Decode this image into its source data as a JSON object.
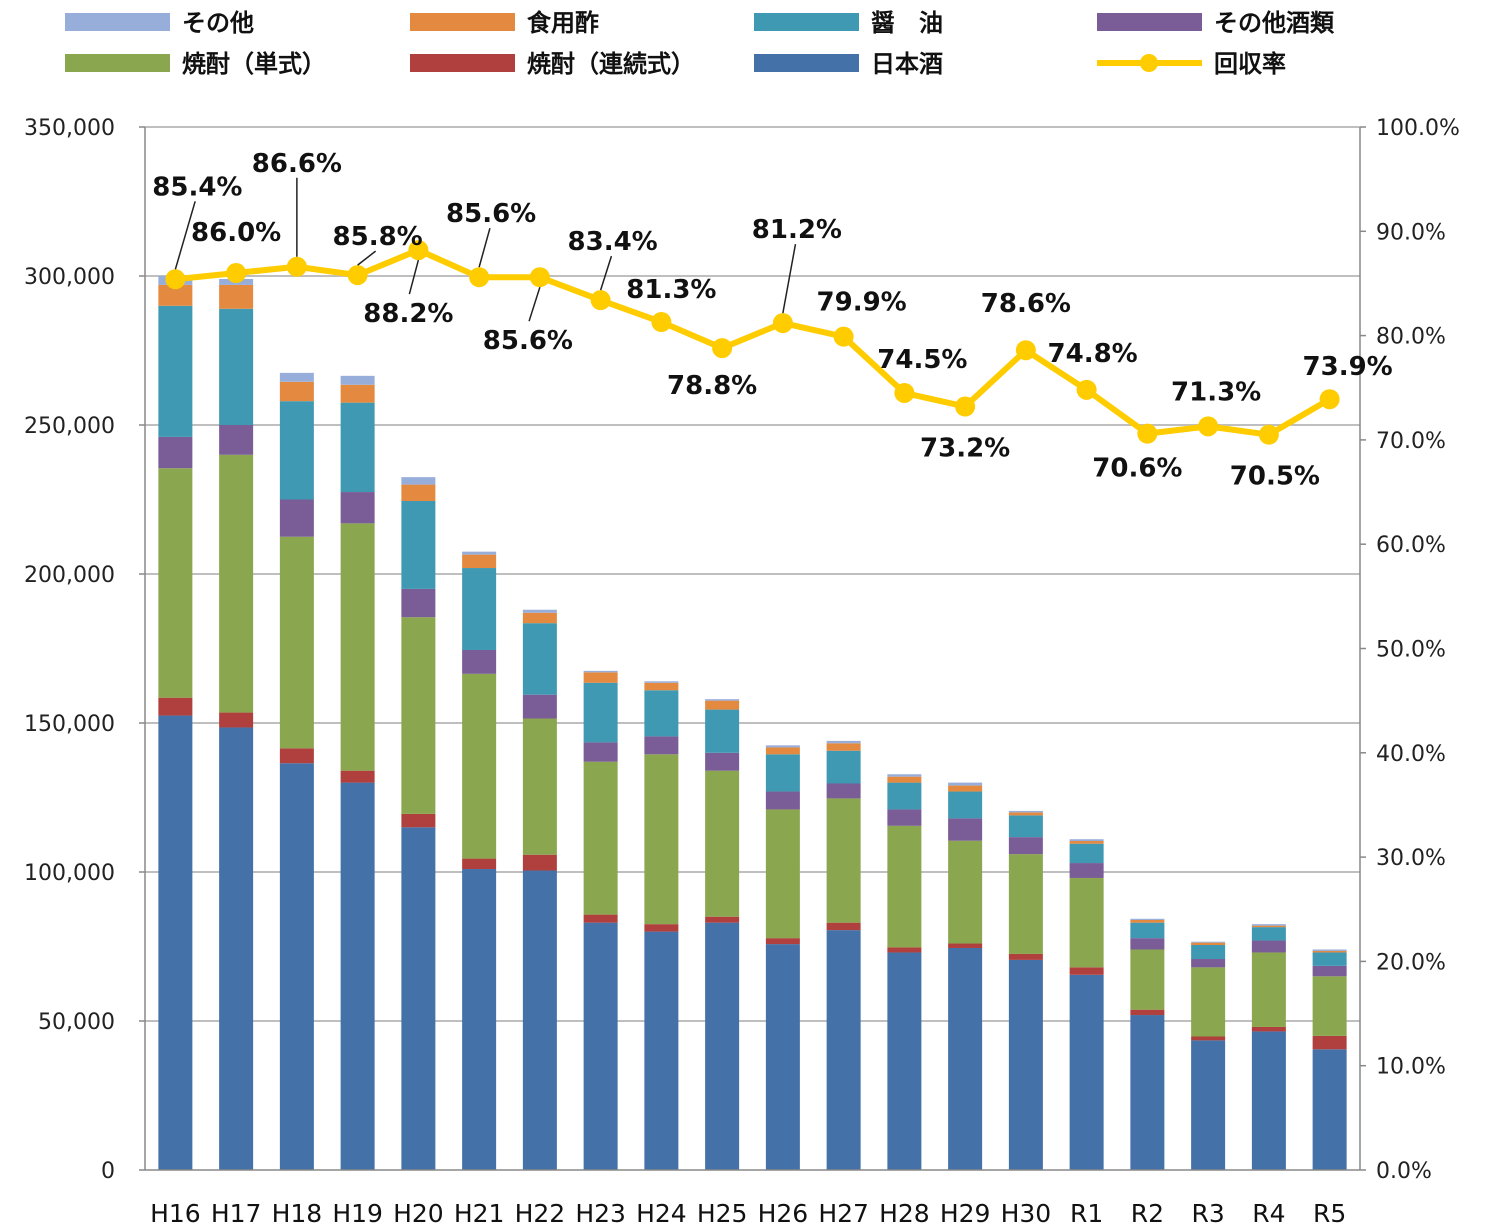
{
  "chart_data": {
    "type": "bar",
    "stacked": true,
    "title": "",
    "xlabel": "",
    "ylabel": "",
    "ylim": [
      0,
      350000
    ],
    "y2lim": [
      0,
      100
    ],
    "grid": true,
    "legend_position": "top",
    "categories": [
      "H16",
      "H17",
      "H18",
      "H19",
      "H20",
      "H21",
      "H22",
      "H23",
      "H24",
      "H25",
      "H26",
      "H27",
      "H28",
      "H29",
      "H30",
      "R1",
      "R2",
      "R3",
      "R4",
      "R5"
    ],
    "y_ticks": [
      "0",
      "50,000",
      "100,000",
      "150,000",
      "200,000",
      "250,000",
      "300,000",
      "350,000"
    ],
    "y2_ticks": [
      "0.0%",
      "10.0%",
      "20.0%",
      "30.0%",
      "40.0%",
      "50.0%",
      "60.0%",
      "70.0%",
      "80.0%",
      "90.0%",
      "100.0%"
    ],
    "series": [
      {
        "name": "日本酒",
        "color": "#4472A8",
        "values": [
          152500,
          148500,
          136500,
          130000,
          115000,
          101000,
          100500,
          83000,
          80000,
          83000,
          75800,
          80500,
          73000,
          74500,
          70500,
          65500,
          52000,
          43500,
          46500,
          40500
        ]
      },
      {
        "name": "焼酎（連続式）",
        "color": "#B0403E",
        "values": [
          6000,
          5000,
          5000,
          4000,
          4500,
          3500,
          5300,
          2700,
          2500,
          2000,
          2000,
          2500,
          1700,
          1500,
          2000,
          2500,
          1800,
          1300,
          1500,
          4500
        ]
      },
      {
        "name": "焼酎（単式）",
        "color": "#8AA64E",
        "values": [
          77000,
          86500,
          71000,
          83000,
          66000,
          62000,
          45700,
          51300,
          57000,
          49000,
          43200,
          41700,
          40800,
          34500,
          33500,
          30000,
          20200,
          23200,
          25000,
          20000
        ]
      },
      {
        "name": "その他酒類",
        "color": "#7A5C96",
        "values": [
          10500,
          10000,
          12500,
          10500,
          9500,
          8000,
          8000,
          6500,
          6000,
          6000,
          6000,
          5000,
          5500,
          7500,
          5700,
          5000,
          3800,
          2800,
          4000,
          3500
        ]
      },
      {
        "name": "醤　油",
        "color": "#4099B2",
        "values": [
          44000,
          39000,
          33000,
          30000,
          29500,
          27500,
          24000,
          20000,
          15500,
          14500,
          12500,
          11000,
          9000,
          9000,
          7300,
          6500,
          5200,
          4700,
          4500,
          4500
        ]
      },
      {
        "name": "食用酢",
        "color": "#E38A40",
        "values": [
          7000,
          8000,
          6500,
          6000,
          5500,
          4500,
          3500,
          3500,
          2500,
          3000,
          2300,
          2500,
          2000,
          2000,
          1000,
          900,
          900,
          800,
          500,
          500
        ]
      },
      {
        "name": "その他",
        "color": "#98AEDA",
        "values": [
          3000,
          2000,
          3000,
          3000,
          2500,
          1000,
          1000,
          500,
          500,
          500,
          700,
          800,
          800,
          1000,
          500,
          600,
          400,
          300,
          500,
          500
        ]
      }
    ],
    "rate": {
      "name": "回収率",
      "color": "#FFCC00",
      "values": [
        85.4,
        86.0,
        86.6,
        85.8,
        88.2,
        85.6,
        85.6,
        83.4,
        81.3,
        78.8,
        81.2,
        79.9,
        74.5,
        73.2,
        78.6,
        74.8,
        70.6,
        71.3,
        70.5,
        73.9
      ],
      "labels": [
        "85.4%",
        "86.0%",
        "86.6%",
        "85.8%",
        "88.2%",
        "85.6%",
        "85.6%",
        "83.4%",
        "81.3%",
        "78.8%",
        "81.2%",
        "79.9%",
        "74.5%",
        "73.2%",
        "78.6%",
        "74.8%",
        "70.6%",
        "71.3%",
        "70.5%",
        "73.9%"
      ]
    },
    "legend": [
      "その他",
      "食用酢",
      "醤　油",
      "その他酒類",
      "焼酎（単式）",
      "焼酎（連続式）",
      "日本酒",
      "回収率"
    ]
  }
}
